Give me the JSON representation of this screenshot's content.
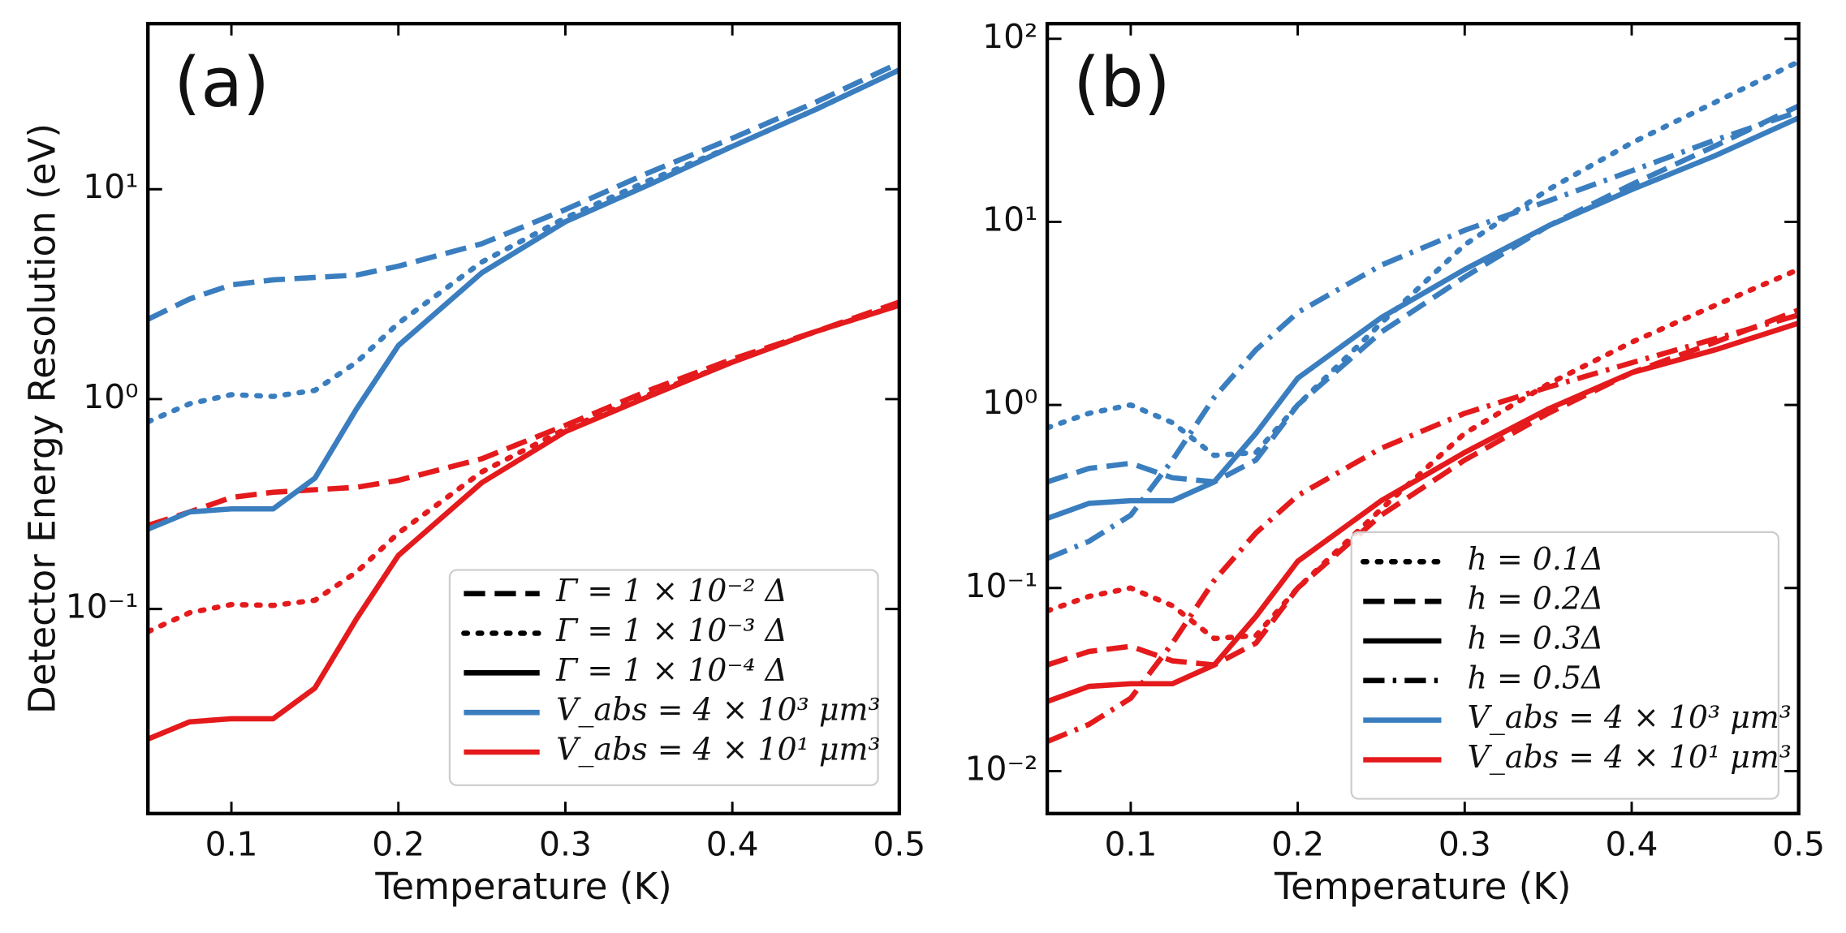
{
  "chart_data": [
    {
      "type": "line",
      "annotation": "(a)",
      "xlabel": "Temperature (K)",
      "ylabel": "Detector Energy Resolution (eV)",
      "log_y": true,
      "xlim": [
        0.05,
        0.5
      ],
      "ylim": [
        0.0106,
        61.5
      ],
      "xticks": [
        0.1,
        0.2,
        0.3,
        0.4,
        0.5
      ],
      "yticks": [
        {
          "value": 0.1,
          "label": "10⁻¹"
        },
        {
          "value": 1,
          "label": "10⁰"
        },
        {
          "value": 10,
          "label": "10¹"
        }
      ],
      "x": [
        0.05,
        0.075,
        0.1,
        0.125,
        0.15,
        0.175,
        0.2,
        0.25,
        0.3,
        0.35,
        0.4,
        0.45,
        0.5
      ],
      "series": [
        {
          "color": "#e41a1c",
          "dash": "dashed",
          "values": [
            0.25,
            0.29,
            0.34,
            0.36,
            0.37,
            0.38,
            0.41,
            0.52,
            0.75,
            1.1,
            1.55,
            2.1,
            2.9
          ]
        },
        {
          "color": "#e41a1c",
          "dash": "dotted",
          "values": [
            0.078,
            0.096,
            0.105,
            0.104,
            0.11,
            0.15,
            0.23,
            0.45,
            0.72,
            1.05,
            1.5,
            2.1,
            2.8
          ]
        },
        {
          "color": "#e41a1c",
          "dash": "solid",
          "values": [
            0.024,
            0.029,
            0.03,
            0.03,
            0.042,
            0.09,
            0.18,
            0.4,
            0.7,
            1.03,
            1.5,
            2.1,
            2.8
          ]
        },
        {
          "color": "#3a7ebf",
          "dash": "dashed",
          "values": [
            2.4,
            3.0,
            3.5,
            3.7,
            3.8,
            3.9,
            4.3,
            5.5,
            8.0,
            12,
            17.5,
            26,
            40
          ]
        },
        {
          "color": "#3a7ebf",
          "dash": "dotted",
          "values": [
            0.78,
            0.95,
            1.05,
            1.03,
            1.1,
            1.5,
            2.3,
            4.5,
            7.3,
            11,
            16,
            24,
            37
          ]
        },
        {
          "color": "#3a7ebf",
          "dash": "solid",
          "values": [
            0.24,
            0.29,
            0.3,
            0.3,
            0.42,
            0.9,
            1.8,
            4.0,
            7.0,
            10.5,
            16,
            24,
            37
          ]
        }
      ],
      "legend": [
        {
          "label": "Γ = 1 × 10⁻² Δ",
          "dash": "dashed",
          "color": "#000000"
        },
        {
          "label": "Γ = 1 × 10⁻³ Δ",
          "dash": "dotted",
          "color": "#000000"
        },
        {
          "label": "Γ = 1 × 10⁻⁴ Δ",
          "dash": "solid",
          "color": "#000000"
        },
        {
          "label": "V_abs = 4 × 10³ μm³",
          "dash": "solid",
          "color": "#3a7ebf"
        },
        {
          "label": "V_abs = 4 × 10¹ μm³",
          "dash": "solid",
          "color": "#e41a1c"
        }
      ]
    },
    {
      "type": "line",
      "annotation": "(b)",
      "xlabel": "Temperature (K)",
      "log_y": true,
      "xlim": [
        0.05,
        0.5
      ],
      "ylim": [
        0.00586,
        121
      ],
      "xticks": [
        0.1,
        0.2,
        0.3,
        0.4,
        0.5
      ],
      "yticks": [
        {
          "value": 0.01,
          "label": "10⁻²"
        },
        {
          "value": 0.1,
          "label": "10⁻¹"
        },
        {
          "value": 1,
          "label": "10⁰"
        },
        {
          "value": 10,
          "label": "10¹"
        },
        {
          "value": 100,
          "label": "10²"
        }
      ],
      "x": [
        0.05,
        0.075,
        0.1,
        0.125,
        0.15,
        0.175,
        0.2,
        0.25,
        0.3,
        0.35,
        0.4,
        0.45,
        0.5
      ],
      "series": [
        {
          "color": "#e41a1c",
          "dash": "dotted",
          "values": [
            0.075,
            0.09,
            0.1,
            0.08,
            0.053,
            0.055,
            0.1,
            0.27,
            0.7,
            1.3,
            2.2,
            3.5,
            5.5
          ]
        },
        {
          "color": "#e41a1c",
          "dash": "dashed",
          "values": [
            0.038,
            0.045,
            0.048,
            0.04,
            0.038,
            0.05,
            0.1,
            0.25,
            0.5,
            0.9,
            1.5,
            2.2,
            3.3
          ]
        },
        {
          "color": "#e41a1c",
          "dash": "solid",
          "values": [
            0.024,
            0.029,
            0.03,
            0.03,
            0.038,
            0.07,
            0.14,
            0.3,
            0.55,
            0.95,
            1.5,
            2.0,
            2.8
          ]
        },
        {
          "color": "#e41a1c",
          "dash": "dashdot",
          "values": [
            0.0145,
            0.018,
            0.025,
            0.05,
            0.11,
            0.2,
            0.32,
            0.58,
            0.9,
            1.25,
            1.7,
            2.3,
            3.1
          ]
        },
        {
          "color": "#3a7ebf",
          "dash": "dotted",
          "values": [
            0.75,
            0.9,
            1.0,
            0.8,
            0.53,
            0.55,
            1.0,
            2.8,
            7.5,
            15,
            27,
            45,
            75
          ]
        },
        {
          "color": "#3a7ebf",
          "dash": "dashed",
          "values": [
            0.38,
            0.45,
            0.48,
            0.4,
            0.38,
            0.5,
            1.0,
            2.5,
            5.0,
            9.5,
            16,
            26,
            43
          ]
        },
        {
          "color": "#3a7ebf",
          "dash": "solid",
          "values": [
            0.24,
            0.29,
            0.3,
            0.3,
            0.38,
            0.7,
            1.4,
            3.0,
            5.5,
            9.5,
            15,
            23,
            37
          ]
        },
        {
          "color": "#3a7ebf",
          "dash": "dashdot",
          "values": [
            0.145,
            0.18,
            0.25,
            0.5,
            1.1,
            2.0,
            3.2,
            5.8,
            9.0,
            13,
            19,
            28,
            40
          ]
        }
      ],
      "legend": [
        {
          "label": "h = 0.1Δ",
          "dash": "dotted",
          "color": "#000000"
        },
        {
          "label": "h = 0.2Δ",
          "dash": "dashed",
          "color": "#000000"
        },
        {
          "label": "h = 0.3Δ",
          "dash": "solid",
          "color": "#000000"
        },
        {
          "label": "h = 0.5Δ",
          "dash": "dashdot",
          "color": "#000000"
        },
        {
          "label": "V_abs = 4 × 10³ μm³",
          "dash": "solid",
          "color": "#3a7ebf"
        },
        {
          "label": "V_abs = 4 × 10¹ μm³",
          "dash": "solid",
          "color": "#e41a1c"
        }
      ]
    }
  ]
}
